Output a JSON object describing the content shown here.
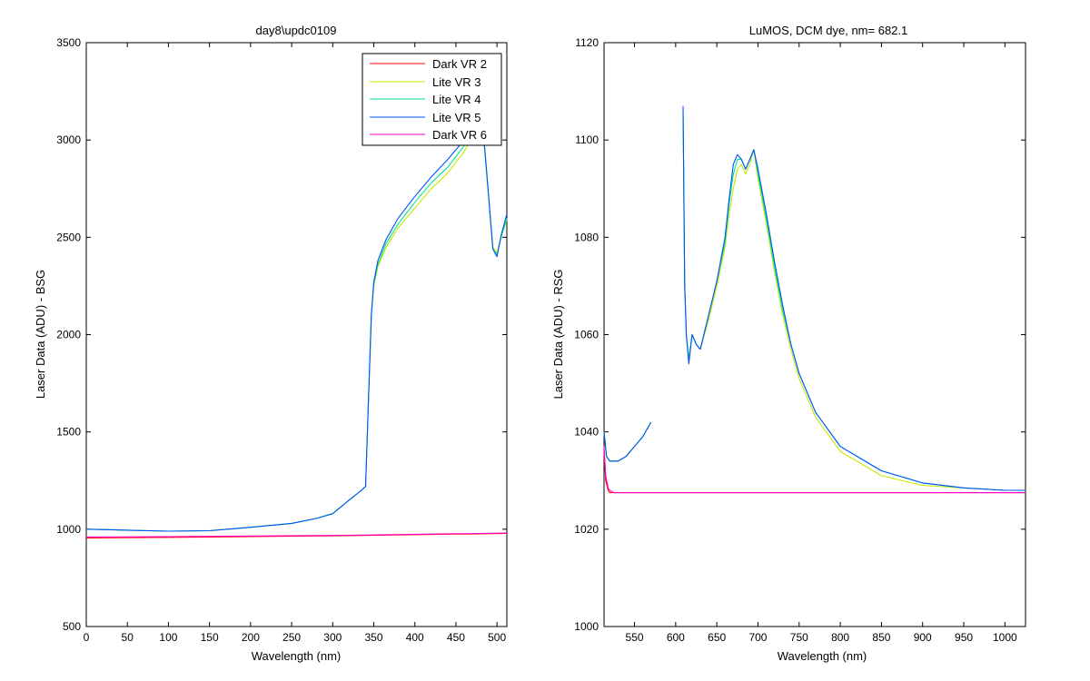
{
  "chart_data": [
    {
      "type": "line",
      "title": "day8\\updc0109",
      "xlabel": "Wavelength (nm)",
      "ylabel": "Laser Data (ADU) - BSG",
      "xlim": [
        0,
        512
      ],
      "ylim": [
        500,
        3500
      ],
      "xticks": [
        0,
        50,
        100,
        150,
        200,
        250,
        300,
        350,
        400,
        450,
        500
      ],
      "yticks": [
        500,
        1000,
        1500,
        2000,
        2500,
        3000,
        3500
      ],
      "grid": false,
      "legend": "top-right",
      "series": [
        {
          "name": "Dark VR 2",
          "color": "#ff0000",
          "x": [
            0,
            100,
            200,
            300,
            400,
            512
          ],
          "y": [
            955,
            958,
            962,
            966,
            972,
            978
          ]
        },
        {
          "name": "Lite VR 3",
          "color": "#c8e600",
          "x": [
            0,
            50,
            100,
            150,
            200,
            250,
            280,
            300,
            320,
            335,
            340,
            343,
            347,
            350,
            355,
            365,
            380,
            400,
            420,
            440,
            460,
            470,
            480,
            485,
            490,
            495,
            500,
            505,
            512
          ],
          "y": [
            1000,
            995,
            990,
            992,
            1010,
            1030,
            1055,
            1080,
            1150,
            1200,
            1220,
            1600,
            2100,
            2250,
            2350,
            2450,
            2550,
            2650,
            2750,
            2830,
            2940,
            3020,
            3070,
            2950,
            2700,
            2450,
            2420,
            2500,
            2590
          ]
        },
        {
          "name": "Lite VR 4",
          "color": "#00e68a",
          "x": [
            0,
            50,
            100,
            150,
            200,
            250,
            280,
            300,
            320,
            335,
            340,
            343,
            347,
            350,
            355,
            365,
            380,
            400,
            420,
            440,
            460,
            470,
            480,
            485,
            490,
            495,
            500,
            505,
            512
          ],
          "y": [
            1000,
            995,
            990,
            992,
            1010,
            1030,
            1055,
            1080,
            1150,
            1200,
            1220,
            1600,
            2100,
            2260,
            2360,
            2470,
            2570,
            2680,
            2780,
            2860,
            2970,
            3050,
            3100,
            2960,
            2700,
            2440,
            2410,
            2500,
            2600
          ]
        },
        {
          "name": "Lite VR 5",
          "color": "#0050ff",
          "x": [
            0,
            50,
            100,
            150,
            200,
            250,
            280,
            300,
            320,
            335,
            340,
            343,
            347,
            350,
            355,
            365,
            380,
            400,
            420,
            440,
            460,
            470,
            480,
            485,
            490,
            495,
            500,
            505,
            512
          ],
          "y": [
            1000,
            995,
            990,
            992,
            1010,
            1030,
            1055,
            1080,
            1150,
            1200,
            1220,
            1600,
            2100,
            2270,
            2380,
            2490,
            2600,
            2710,
            2810,
            2900,
            3000,
            3080,
            3120,
            2960,
            2700,
            2440,
            2400,
            2510,
            2620
          ]
        },
        {
          "name": "Dark VR 6",
          "color": "#ff00c8",
          "x": [
            0,
            100,
            200,
            300,
            400,
            512
          ],
          "y": [
            960,
            962,
            965,
            968,
            974,
            980
          ]
        }
      ]
    },
    {
      "type": "line",
      "title": "LuMOS, DCM dye, nm= 682.1",
      "xlabel": "Wavelength (nm)",
      "ylabel": "Laser Data (ADU) - RSG",
      "xlim": [
        513,
        1025
      ],
      "ylim": [
        1000,
        1120
      ],
      "xticks": [
        550,
        600,
        650,
        700,
        750,
        800,
        850,
        900,
        950,
        1000
      ],
      "yticks": [
        1000,
        1020,
        1040,
        1060,
        1080,
        1100,
        1120
      ],
      "grid": false,
      "series": [
        {
          "name": "Dark VR 2",
          "color": "#ff0000",
          "x": [
            513,
            515,
            518,
            520,
            525,
            1025
          ],
          "y": [
            1036,
            1030,
            1028,
            1027.5,
            1027.5,
            1027.5
          ]
        },
        {
          "name": "Lite VR 3",
          "color": "#c8e600",
          "x": [
            513,
            516,
            520,
            530,
            540,
            550,
            560,
            570,
            null,
            609,
            611,
            613,
            616,
            620,
            625,
            630,
            640,
            650,
            660,
            665,
            670,
            675,
            680,
            685,
            690,
            695,
            700,
            710,
            720,
            730,
            740,
            750,
            770,
            800,
            850,
            900,
            950,
            1000,
            1025
          ],
          "y": [
            1040,
            1035,
            1034,
            1034,
            1035,
            1037,
            1039,
            1042,
            null,
            1105,
            1070,
            1060,
            1055,
            1060,
            1058,
            1057,
            1063,
            1070,
            1078,
            1085,
            1090,
            1094,
            1095,
            1093,
            1095,
            1098,
            1092,
            1083,
            1073,
            1064,
            1057,
            1051,
            1043,
            1036,
            1031,
            1029,
            1028.5,
            1028,
            1028
          ]
        },
        {
          "name": "Lite VR 4",
          "color": "#00e68a",
          "x": [
            513,
            516,
            520,
            530,
            540,
            550,
            560,
            570,
            null,
            609,
            611,
            613,
            616,
            620,
            625,
            630,
            640,
            650,
            660,
            665,
            670,
            675,
            680,
            685,
            690,
            695,
            700,
            710,
            720,
            730,
            740,
            750,
            770,
            800,
            850,
            900,
            950,
            1000,
            1025
          ],
          "y": [
            1040,
            1035,
            1034,
            1034,
            1035,
            1037,
            1039,
            1042,
            null,
            1106,
            1070,
            1060,
            1055,
            1060,
            1058,
            1057,
            1064,
            1071,
            1079,
            1087,
            1093,
            1096,
            1096,
            1094,
            1096,
            1098,
            1093,
            1084,
            1074,
            1065,
            1058,
            1052,
            1044,
            1037,
            1032,
            1029.5,
            1028.5,
            1028,
            1028
          ]
        },
        {
          "name": "Lite VR 5",
          "color": "#0050ff",
          "x": [
            513,
            516,
            520,
            530,
            540,
            550,
            560,
            570,
            null,
            609,
            611,
            613,
            616,
            620,
            625,
            630,
            640,
            650,
            660,
            665,
            670,
            675,
            680,
            685,
            690,
            695,
            700,
            710,
            720,
            730,
            740,
            750,
            770,
            800,
            850,
            900,
            950,
            1000,
            1025
          ],
          "y": [
            1040,
            1035,
            1034,
            1034,
            1035,
            1037,
            1039,
            1042,
            null,
            1107,
            1070,
            1060,
            1054,
            1060,
            1058,
            1057,
            1064,
            1071,
            1080,
            1088,
            1095,
            1097,
            1096,
            1094,
            1096,
            1098,
            1094,
            1085,
            1075,
            1066,
            1058,
            1052,
            1044,
            1037,
            1032,
            1029.5,
            1028.5,
            1028,
            1028
          ]
        },
        {
          "name": "Dark VR 6",
          "color": "#ff00c8",
          "x": [
            513,
            515,
            518,
            520,
            525,
            1025
          ],
          "y": [
            1037,
            1031,
            1028.5,
            1028,
            1027.5,
            1027.5
          ]
        }
      ]
    }
  ]
}
